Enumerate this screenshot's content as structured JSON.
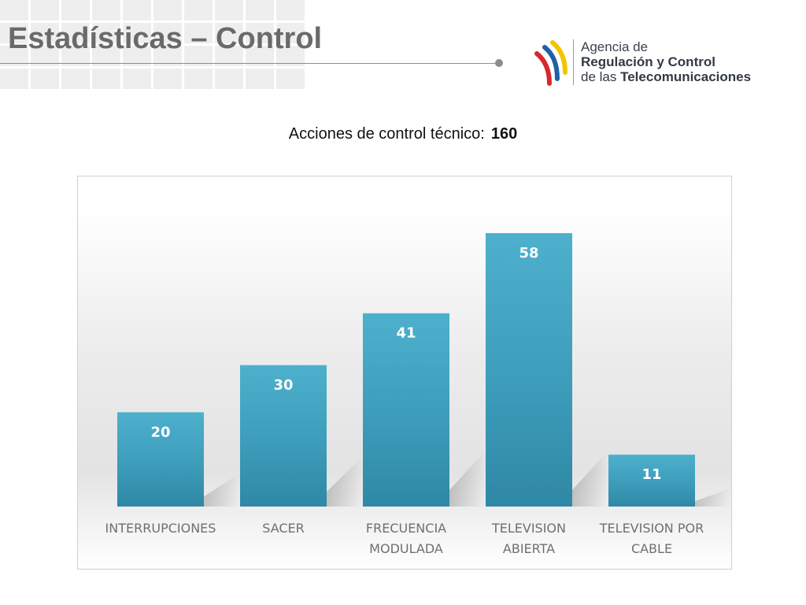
{
  "slide": {
    "title": "Estadísticas – Control",
    "subtitle_label": "Acciones de control técnico:",
    "subtitle_total": "160"
  },
  "logo": {
    "line1": "Agencia de",
    "line2": "Regulación y Control",
    "line3_prefix": "de las",
    "line3_strong": "Telecomunicaciones",
    "colors": [
      "#f2c500",
      "#1f5fa8",
      "#d7282f"
    ]
  },
  "chart_data": {
    "type": "bar",
    "categories": [
      [
        "INTERRUPCIONES"
      ],
      [
        "SACER"
      ],
      [
        "FRECUENCIA",
        "MODULADA"
      ],
      [
        "TELEVISION",
        "ABIERTA"
      ],
      [
        "TELEVISION POR",
        "CABLE"
      ]
    ],
    "values": [
      20,
      30,
      41,
      58,
      11
    ],
    "data_labels": [
      "20",
      "30",
      "41",
      "58",
      "11"
    ],
    "bar_color": "#3e9fbd",
    "bar_color_light": "#4db0cc",
    "bar_color_dark": "#2f88a5",
    "data_label_color": "#ffffff",
    "category_label_color": "#6f6f6f",
    "grid": false,
    "legend": "none",
    "ylim": [
      0,
      60
    ]
  }
}
